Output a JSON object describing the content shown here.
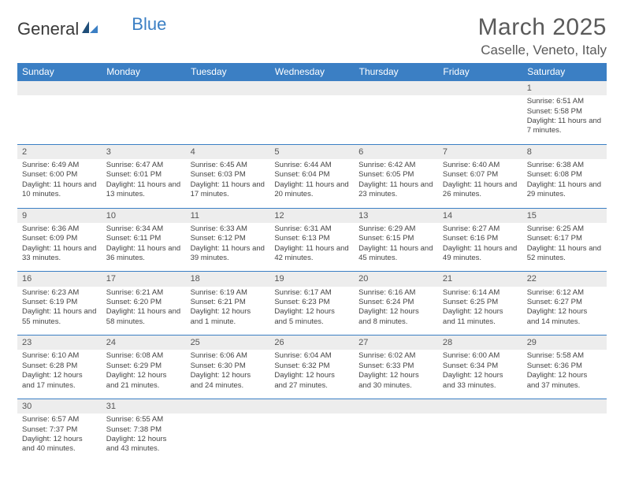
{
  "logo": {
    "text1": "General",
    "text2": "Blue"
  },
  "title": "March 2025",
  "location": "Caselle, Veneto, Italy",
  "colors": {
    "header_bg": "#3b7fc4",
    "header_text": "#ffffff",
    "daynum_bg": "#ededed",
    "border": "#3b7fc4",
    "body_text": "#444444"
  },
  "weekdays": [
    "Sunday",
    "Monday",
    "Tuesday",
    "Wednesday",
    "Thursday",
    "Friday",
    "Saturday"
  ],
  "weeks": [
    [
      null,
      null,
      null,
      null,
      null,
      null,
      {
        "d": "1",
        "sr": "6:51 AM",
        "ss": "5:58 PM",
        "dl": "11 hours and 7 minutes."
      }
    ],
    [
      {
        "d": "2",
        "sr": "6:49 AM",
        "ss": "6:00 PM",
        "dl": "11 hours and 10 minutes."
      },
      {
        "d": "3",
        "sr": "6:47 AM",
        "ss": "6:01 PM",
        "dl": "11 hours and 13 minutes."
      },
      {
        "d": "4",
        "sr": "6:45 AM",
        "ss": "6:03 PM",
        "dl": "11 hours and 17 minutes."
      },
      {
        "d": "5",
        "sr": "6:44 AM",
        "ss": "6:04 PM",
        "dl": "11 hours and 20 minutes."
      },
      {
        "d": "6",
        "sr": "6:42 AM",
        "ss": "6:05 PM",
        "dl": "11 hours and 23 minutes."
      },
      {
        "d": "7",
        "sr": "6:40 AM",
        "ss": "6:07 PM",
        "dl": "11 hours and 26 minutes."
      },
      {
        "d": "8",
        "sr": "6:38 AM",
        "ss": "6:08 PM",
        "dl": "11 hours and 29 minutes."
      }
    ],
    [
      {
        "d": "9",
        "sr": "6:36 AM",
        "ss": "6:09 PM",
        "dl": "11 hours and 33 minutes."
      },
      {
        "d": "10",
        "sr": "6:34 AM",
        "ss": "6:11 PM",
        "dl": "11 hours and 36 minutes."
      },
      {
        "d": "11",
        "sr": "6:33 AM",
        "ss": "6:12 PM",
        "dl": "11 hours and 39 minutes."
      },
      {
        "d": "12",
        "sr": "6:31 AM",
        "ss": "6:13 PM",
        "dl": "11 hours and 42 minutes."
      },
      {
        "d": "13",
        "sr": "6:29 AM",
        "ss": "6:15 PM",
        "dl": "11 hours and 45 minutes."
      },
      {
        "d": "14",
        "sr": "6:27 AM",
        "ss": "6:16 PM",
        "dl": "11 hours and 49 minutes."
      },
      {
        "d": "15",
        "sr": "6:25 AM",
        "ss": "6:17 PM",
        "dl": "11 hours and 52 minutes."
      }
    ],
    [
      {
        "d": "16",
        "sr": "6:23 AM",
        "ss": "6:19 PM",
        "dl": "11 hours and 55 minutes."
      },
      {
        "d": "17",
        "sr": "6:21 AM",
        "ss": "6:20 PM",
        "dl": "11 hours and 58 minutes."
      },
      {
        "d": "18",
        "sr": "6:19 AM",
        "ss": "6:21 PM",
        "dl": "12 hours and 1 minute."
      },
      {
        "d": "19",
        "sr": "6:17 AM",
        "ss": "6:23 PM",
        "dl": "12 hours and 5 minutes."
      },
      {
        "d": "20",
        "sr": "6:16 AM",
        "ss": "6:24 PM",
        "dl": "12 hours and 8 minutes."
      },
      {
        "d": "21",
        "sr": "6:14 AM",
        "ss": "6:25 PM",
        "dl": "12 hours and 11 minutes."
      },
      {
        "d": "22",
        "sr": "6:12 AM",
        "ss": "6:27 PM",
        "dl": "12 hours and 14 minutes."
      }
    ],
    [
      {
        "d": "23",
        "sr": "6:10 AM",
        "ss": "6:28 PM",
        "dl": "12 hours and 17 minutes."
      },
      {
        "d": "24",
        "sr": "6:08 AM",
        "ss": "6:29 PM",
        "dl": "12 hours and 21 minutes."
      },
      {
        "d": "25",
        "sr": "6:06 AM",
        "ss": "6:30 PM",
        "dl": "12 hours and 24 minutes."
      },
      {
        "d": "26",
        "sr": "6:04 AM",
        "ss": "6:32 PM",
        "dl": "12 hours and 27 minutes."
      },
      {
        "d": "27",
        "sr": "6:02 AM",
        "ss": "6:33 PM",
        "dl": "12 hours and 30 minutes."
      },
      {
        "d": "28",
        "sr": "6:00 AM",
        "ss": "6:34 PM",
        "dl": "12 hours and 33 minutes."
      },
      {
        "d": "29",
        "sr": "5:58 AM",
        "ss": "6:36 PM",
        "dl": "12 hours and 37 minutes."
      }
    ],
    [
      {
        "d": "30",
        "sr": "6:57 AM",
        "ss": "7:37 PM",
        "dl": "12 hours and 40 minutes."
      },
      {
        "d": "31",
        "sr": "6:55 AM",
        "ss": "7:38 PM",
        "dl": "12 hours and 43 minutes."
      },
      null,
      null,
      null,
      null,
      null
    ]
  ],
  "labels": {
    "sunrise": "Sunrise:",
    "sunset": "Sunset:",
    "daylight": "Daylight:"
  }
}
